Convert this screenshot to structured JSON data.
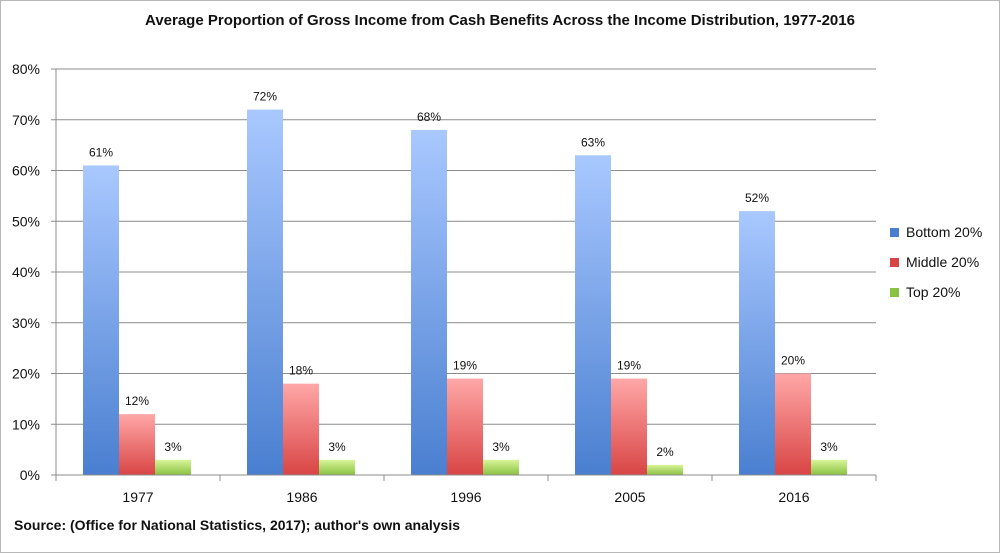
{
  "chart_data": {
    "type": "bar",
    "title": "Average Proportion of Gross Income from Cash Benefits Across the Income Distribution, 1977-2016",
    "categories": [
      "1977",
      "1986",
      "1996",
      "2005",
      "2016"
    ],
    "series": [
      {
        "name": "Bottom 20%",
        "values": [
          61,
          72,
          68,
          63,
          52
        ],
        "color": "#4a7fd0"
      },
      {
        "name": "Middle 20%",
        "values": [
          12,
          18,
          19,
          19,
          20
        ],
        "color": "#d94545"
      },
      {
        "name": "Top 20%",
        "values": [
          3,
          3,
          3,
          2,
          3
        ],
        "color": "#8ac142"
      }
    ],
    "data_labels": [
      [
        "61%",
        "72%",
        "68%",
        "63%",
        "52%"
      ],
      [
        "12%",
        "18%",
        "19%",
        "19%",
        "20%"
      ],
      [
        "3%",
        "3%",
        "3%",
        "2%",
        "3%"
      ]
    ],
    "y_ticks": [
      "0%",
      "10%",
      "20%",
      "30%",
      "40%",
      "50%",
      "60%",
      "70%",
      "80%"
    ],
    "ylim": [
      0,
      80
    ],
    "grid": true,
    "legend_position": "right"
  },
  "source": "Source: (Office for National Statistics, 2017); author's own analysis"
}
